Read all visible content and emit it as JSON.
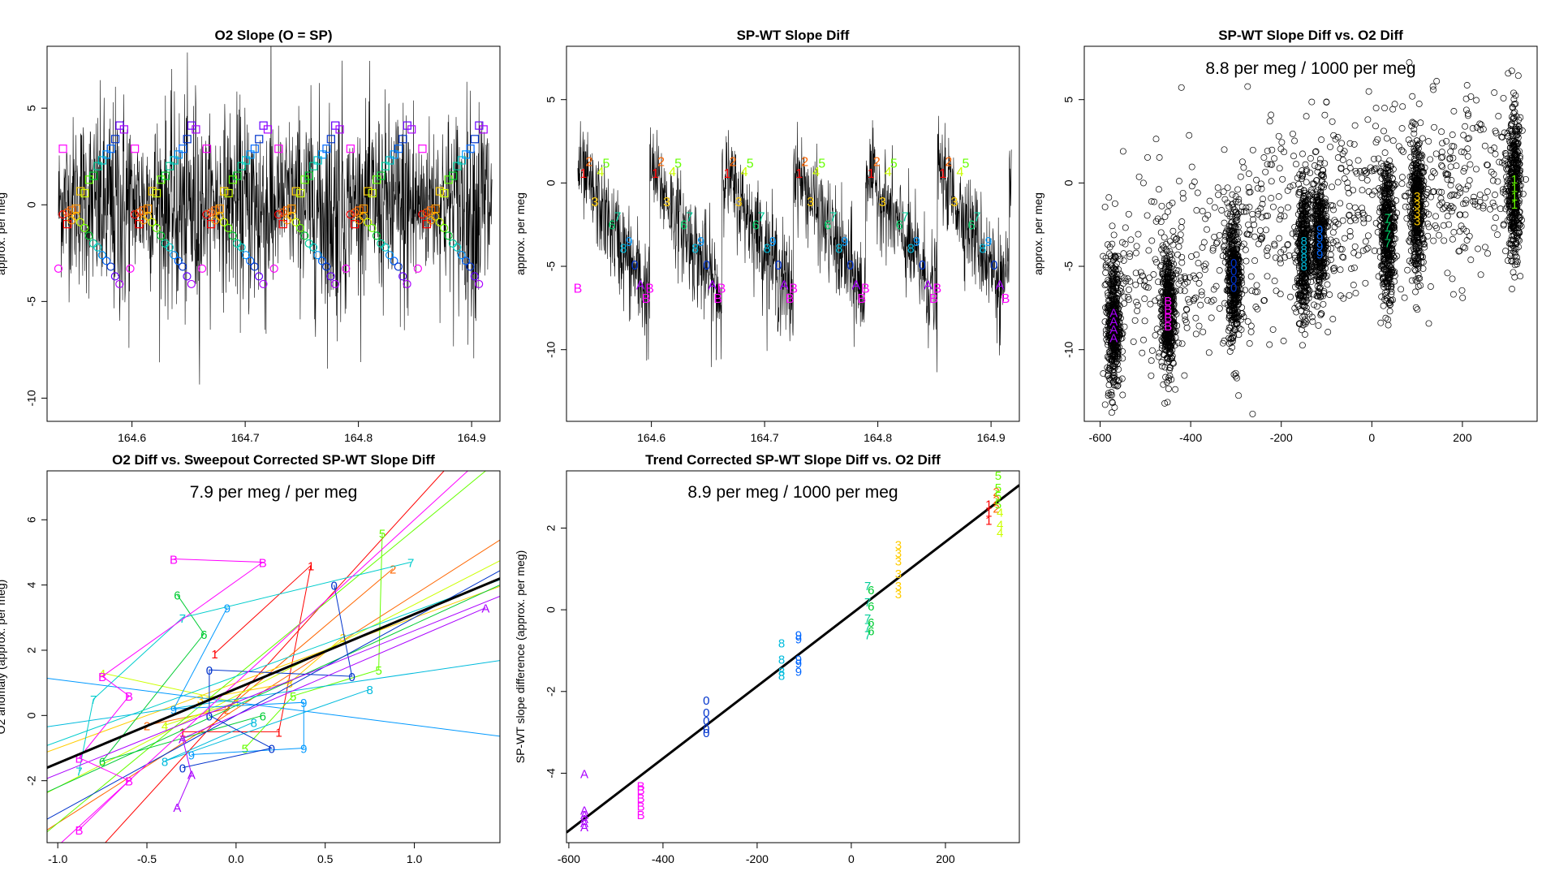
{
  "figure": {
    "colors": {
      "frame": "#000000",
      "background": "#ffffff",
      "fit_line": "#000000"
    }
  },
  "chart_data": [
    {
      "id": "p1",
      "type": "line",
      "title": "O2 Slope (O = SP)",
      "xlabel": "",
      "ylabel": "approx. per meg",
      "xlim": [
        164.525,
        164.925
      ],
      "ylim": [
        -11.2,
        8.2
      ],
      "xticks": [
        164.6,
        164.7,
        164.8,
        164.9
      ],
      "xtick_labels": [
        "164.6",
        "164.7",
        "164.8",
        "164.9"
      ],
      "yticks": [
        -10,
        -5,
        0,
        5
      ],
      "ytick_labels": [
        "-10",
        "-5",
        "0",
        "5"
      ],
      "x_start": 164.535,
      "x_end": 164.918,
      "n_segments": 6,
      "segment_period": 0.0635,
      "line_color": "#000000",
      "circle_values": [
        -3.3,
        -0.5,
        -0.4,
        -0.8,
        -0.6,
        -0.9,
        -1.2,
        -1.6,
        -2.0,
        -2.2,
        -2.6,
        -2.9,
        -3.2,
        -3.7,
        -4.1
      ],
      "square_values": [
        2.9,
        -1.0,
        -0.3,
        -0.2,
        0.7,
        0.6,
        1.3,
        1.5,
        2.0,
        2.3,
        2.6,
        2.9,
        3.4,
        4.1,
        3.9
      ],
      "marker_colors": [
        "#FF00FF",
        "#FF0000",
        "#FF6600",
        "#FF9900",
        "#FFCC00",
        "#CCFF00",
        "#66FF00",
        "#00CC33",
        "#00CC99",
        "#00CCCC",
        "#0099FF",
        "#0066FF",
        "#0033CC",
        "#6600FF",
        "#AA00FF"
      ]
    },
    {
      "id": "p2",
      "type": "line",
      "title": "SP-WT Slope Diff",
      "xlabel": "",
      "ylabel": "approx. per meg",
      "xlim": [
        164.525,
        164.925
      ],
      "ylim": [
        -14.3,
        8.2
      ],
      "xticks": [
        164.6,
        164.7,
        164.8,
        164.9
      ],
      "xtick_labels": [
        "164.6",
        "164.7",
        "164.8",
        "164.9"
      ],
      "yticks": [
        -10,
        -5,
        0,
        5
      ],
      "ytick_labels": [
        "-10",
        "-5",
        "0",
        "5"
      ],
      "x_start": 164.535,
      "x_end": 164.918,
      "n_segments": 6,
      "segment_period": 0.0635,
      "line_color": "#000000",
      "label_chars": [
        "B",
        "1",
        "2",
        "3",
        "4",
        "5",
        "6",
        "7",
        "8",
        "9",
        "0",
        "A",
        "B"
      ],
      "label_values": [
        -6.3,
        0.6,
        1.3,
        -1.1,
        0.7,
        1.2,
        -2.5,
        -2.0,
        -3.9,
        -3.5,
        -4.9,
        -6.1,
        -6.9
      ],
      "label_colors": [
        "#FF00FF",
        "#FF0000",
        "#FF6600",
        "#FFCC00",
        "#CCFF00",
        "#66FF00",
        "#00CC66",
        "#00CC99",
        "#00BBDD",
        "#0099FF",
        "#0033CC",
        "#AA00FF",
        "#FF00FF"
      ]
    },
    {
      "id": "p3",
      "type": "scatter",
      "title": "SP-WT Slope Diff vs. O2 Diff",
      "annotation": "8.8 per meg / 1000 per meg",
      "xlabel": "",
      "ylabel": "approx. per meg",
      "xlim": [
        -635,
        365
      ],
      "ylim": [
        -14.3,
        8.2
      ],
      "xticks": [
        -600,
        -400,
        -200,
        0,
        200
      ],
      "xtick_labels": [
        "-600",
        "-400",
        "-200",
        "0",
        "200"
      ],
      "yticks": [
        -10,
        -5,
        0,
        5
      ],
      "ytick_labels": [
        "-10",
        "-5",
        "0",
        "5"
      ],
      "cluster_x": [
        -570,
        -450,
        -305,
        -150,
        -115,
        35,
        100,
        315
      ],
      "cluster_mean_y": [
        -8.5,
        -7.8,
        -5.5,
        -4.2,
        -3.5,
        -2.8,
        -1.5,
        -0.5
      ],
      "cluster_spread_y": [
        2.6,
        2.4,
        2.6,
        2.4,
        2.4,
        2.6,
        2.4,
        2.8
      ],
      "cluster_labels": [
        "A",
        "B",
        "0",
        "8",
        "9",
        "7",
        "3",
        "1"
      ],
      "cluster_label_colors": [
        "#AA00FF",
        "#FF00FF",
        "#0033CC",
        "#00BBDD",
        "#0066FF",
        "#00CC66",
        "#FFCC00",
        "#66FF00"
      ],
      "scatter_x_range": [
        -590,
        330
      ],
      "scatter_y_range": [
        -13,
        7
      ]
    },
    {
      "id": "p4",
      "type": "line",
      "title": "O2 Diff vs. Sweepout Corrected SP-WT Slope Diff",
      "annotation": "7.9 per meg / per meg",
      "xlabel": "",
      "ylabel": "O2 anomaly (approx. per meg)",
      "xlim": [
        -1.06,
        1.48
      ],
      "ylim": [
        -3.9,
        7.5
      ],
      "xticks": [
        -1.0,
        -0.5,
        0.0,
        0.5,
        1.0
      ],
      "xtick_labels": [
        "-1.0",
        "-0.5",
        "0.0",
        "0.5",
        "1.0"
      ],
      "yticks": [
        -2,
        0,
        2,
        4,
        6
      ],
      "ytick_labels": [
        "-2",
        "0",
        "2",
        "4",
        "6"
      ],
      "fit_line": {
        "x": [
          -1.06,
          1.48
        ],
        "y": [
          -1.6,
          4.2
        ]
      },
      "series": [
        {
          "name": "1",
          "color": "#FF0000",
          "slope": 6.0,
          "intercept": 0.5,
          "points": [
            [
              -0.12,
              1.9
            ],
            [
              0.42,
              4.6
            ],
            [
              0.24,
              -0.5
            ],
            [
              -0.3,
              -0.5
            ]
          ]
        },
        {
          "name": "2",
          "color": "#FF6600",
          "slope": 3.5,
          "intercept": 0.2,
          "points": [
            [
              0.88,
              4.5
            ],
            [
              -0.05,
              0.2
            ],
            [
              -0.5,
              -0.3
            ]
          ]
        },
        {
          "name": "3",
          "color": "#FFCC00",
          "slope": 2.0,
          "intercept": 1.0,
          "points": [
            [
              0.6,
              2.4
            ],
            [
              0.3,
              1.0
            ],
            [
              -0.2,
              0.5
            ]
          ]
        },
        {
          "name": "4",
          "color": "#CCFF00",
          "slope": 2.8,
          "intercept": 0.6,
          "points": [
            [
              -0.75,
              1.3
            ],
            [
              0.0,
              0.4
            ],
            [
              -0.4,
              -0.3
            ]
          ]
        },
        {
          "name": "5",
          "color": "#66FF00",
          "slope": 4.5,
          "intercept": 1.2,
          "points": [
            [
              0.82,
              5.6
            ],
            [
              0.8,
              1.4
            ],
            [
              0.32,
              0.6
            ],
            [
              0.05,
              -1.0
            ]
          ]
        },
        {
          "name": "6",
          "color": "#00CC33",
          "slope": 2.5,
          "intercept": 0.3,
          "points": [
            [
              -0.33,
              3.7
            ],
            [
              -0.18,
              2.5
            ],
            [
              -0.75,
              -1.4
            ],
            [
              0.15,
              0.0
            ]
          ]
        },
        {
          "name": "7",
          "color": "#00CCCC",
          "slope": 2.0,
          "intercept": 1.2,
          "points": [
            [
              0.98,
              4.7
            ],
            [
              -0.3,
              3.0
            ],
            [
              -0.8,
              0.5
            ],
            [
              -0.88,
              -1.7
            ]
          ]
        },
        {
          "name": "8",
          "color": "#00BBDD",
          "slope": 0.8,
          "intercept": 0.5,
          "points": [
            [
              0.75,
              0.8
            ],
            [
              -0.4,
              -1.4
            ],
            [
              0.1,
              -0.2
            ]
          ]
        },
        {
          "name": "9",
          "color": "#0099FF",
          "slope": -0.7,
          "intercept": 0.4,
          "points": [
            [
              -0.05,
              3.3
            ],
            [
              -0.35,
              0.2
            ],
            [
              0.38,
              0.4
            ],
            [
              0.38,
              -1.0
            ],
            [
              -0.25,
              -1.2
            ]
          ]
        },
        {
          "name": "0",
          "color": "#0033CC",
          "slope": 3.0,
          "intercept": 0.0,
          "points": [
            [
              0.55,
              4.0
            ],
            [
              0.65,
              1.2
            ],
            [
              -0.15,
              1.4
            ],
            [
              -0.15,
              0.0
            ],
            [
              0.2,
              -1.0
            ],
            [
              -0.3,
              -1.6
            ]
          ]
        },
        {
          "name": "A",
          "color": "#AA00FF",
          "slope": 2.2,
          "intercept": 0.4,
          "points": [
            [
              1.4,
              3.3
            ],
            [
              -0.3,
              -0.7
            ],
            [
              -0.25,
              -1.8
            ],
            [
              -0.33,
              -2.8
            ]
          ]
        },
        {
          "name": "B",
          "color": "#FF00FF",
          "slope": 5.0,
          "intercept": 1.0,
          "points": [
            [
              -0.35,
              4.8
            ],
            [
              0.15,
              4.7
            ],
            [
              -0.75,
              1.2
            ],
            [
              -0.6,
              0.6
            ],
            [
              -0.88,
              -1.3
            ],
            [
              -0.6,
              -2.0
            ],
            [
              -0.88,
              -3.5
            ]
          ]
        }
      ]
    },
    {
      "id": "p5",
      "type": "scatter",
      "title": "Trend Corrected SP-WT Slope Diff vs. O2 Diff",
      "annotation": "8.9 per meg / 1000 per meg",
      "xlabel": "",
      "ylabel": "SP-WT slope difference (approx. per meg)",
      "xlim": [
        -605,
        357
      ],
      "ylim": [
        -5.7,
        3.4
      ],
      "xticks": [
        -600,
        -400,
        -200,
        0,
        200
      ],
      "xtick_labels": [
        "-600",
        "-400",
        "-200",
        "0",
        "200"
      ],
      "yticks": [
        -4,
        -2,
        0,
        2
      ],
      "ytick_labels": [
        "-4",
        "-2",
        "0",
        "2"
      ],
      "fit_line": {
        "x": [
          -605,
          357
        ],
        "y": [
          -5.45,
          3.05
        ]
      },
      "groups": [
        {
          "label": "A",
          "color": "#AA00FF",
          "x": -567,
          "values": [
            -4.0,
            -4.9,
            -5.0,
            -5.1,
            -5.2,
            -5.3
          ]
        },
        {
          "label": "B",
          "color": "#FF00FF",
          "x": -447,
          "values": [
            -4.3,
            -4.4,
            -4.6,
            -4.8,
            -5.0
          ]
        },
        {
          "label": "0",
          "color": "#0033CC",
          "x": -308,
          "values": [
            -2.2,
            -2.5,
            -2.7,
            -2.9,
            -3.0
          ]
        },
        {
          "label": "8",
          "color": "#00BBDD",
          "x": -148,
          "values": [
            -0.8,
            -1.2,
            -1.5,
            -1.6
          ]
        },
        {
          "label": "9",
          "color": "#0066FF",
          "x": -112,
          "values": [
            -0.6,
            -0.7,
            -1.2,
            -1.3,
            -1.5
          ]
        },
        {
          "label": "7",
          "color": "#00CC99",
          "x": 35,
          "values": [
            0.6,
            0.2,
            -0.2,
            -0.4,
            -0.6
          ]
        },
        {
          "label": "6",
          "color": "#00CC33",
          "x": 42,
          "values": [
            0.5,
            0.1,
            -0.3,
            -0.5
          ]
        },
        {
          "label": "3",
          "color": "#FFCC00",
          "x": 100,
          "values": [
            1.6,
            1.4,
            1.2,
            0.9,
            0.6,
            0.4
          ]
        },
        {
          "label": "1",
          "color": "#FF0000",
          "x": 292,
          "values": [
            2.6,
            2.4,
            2.2
          ]
        },
        {
          "label": "2",
          "color": "#FF6600",
          "x": 308,
          "values": [
            2.9,
            2.7,
            2.5
          ]
        },
        {
          "label": "5",
          "color": "#66FF00",
          "x": 312,
          "values": [
            3.3,
            3.0,
            2.8,
            2.6
          ]
        },
        {
          "label": "4",
          "color": "#CCFF00",
          "x": 316,
          "values": [
            2.4,
            2.1,
            1.9
          ]
        }
      ]
    }
  ]
}
